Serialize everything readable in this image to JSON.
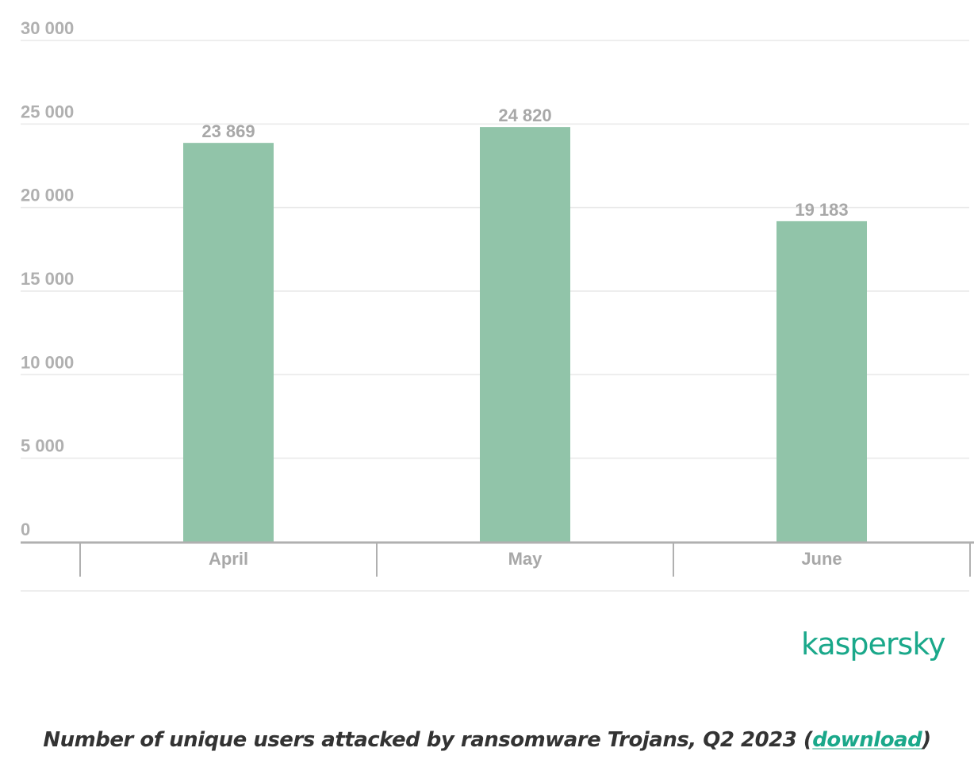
{
  "chart_data": {
    "type": "bar",
    "categories": [
      "April",
      "May",
      "June"
    ],
    "values": [
      23869,
      24820,
      19183
    ],
    "value_labels": [
      "23 869",
      "24 820",
      "19 183"
    ],
    "ylim": [
      0,
      30000
    ],
    "yticks": [
      0,
      5000,
      10000,
      15000,
      20000,
      25000,
      30000
    ],
    "ytick_labels": [
      "0",
      "5 000",
      "10 000",
      "15 000",
      "20 000",
      "25 000",
      "30 000"
    ],
    "grid": true,
    "bar_color": "#91c4a9",
    "grid_color": "#e9e9e9",
    "axis_color": "#b0b0b0"
  },
  "branding": {
    "logo_text": "kaspersky",
    "logo_color": "#1aa88a"
  },
  "caption": {
    "text": "Number of unique users attacked by ransomware Trojans, Q2 2023 (",
    "link": "download",
    "close": ")"
  }
}
